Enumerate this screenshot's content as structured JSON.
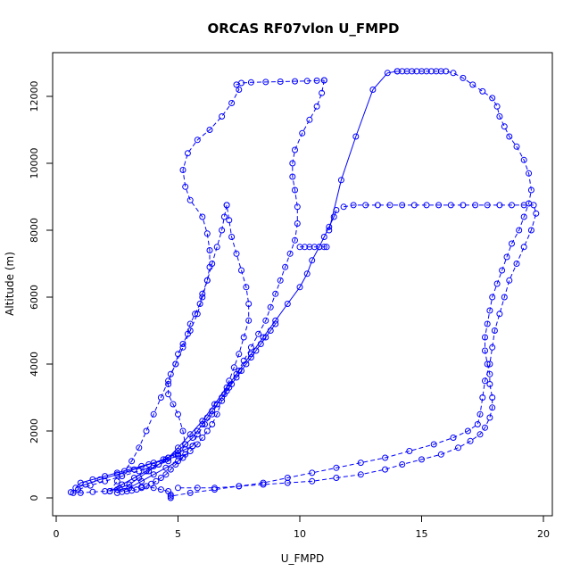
{
  "chart_data": {
    "type": "scatter",
    "title": "ORCAS RF07vlon U_FMPD",
    "xlabel": "U_FMPD",
    "ylabel": "Altitude (m)",
    "xlim": [
      0,
      20
    ],
    "ylim": [
      0,
      13000
    ],
    "xticks": [
      0,
      5,
      10,
      15,
      20
    ],
    "yticks": [
      0,
      2000,
      4000,
      6000,
      8000,
      10000,
      12000
    ],
    "grid": false,
    "color": "#0000ff",
    "series": [
      {
        "style": "dashed",
        "x": [
          4.7,
          4.7,
          4.6,
          4.3,
          4.0,
          3.5,
          3.0,
          2.5,
          2.0,
          1.5,
          1.0,
          0.7,
          0.6,
          0.9,
          1.4,
          2.0,
          2.7,
          3.4,
          4.0,
          4.6,
          5.0,
          5.3,
          5.2,
          5.0,
          4.8,
          4.6,
          4.6,
          4.7,
          4.9,
          5.0,
          5.2,
          5.4,
          5.5,
          5.7,
          5.9,
          6.0,
          6.2,
          6.3,
          6.3,
          6.2,
          6.0,
          5.5,
          5.3,
          5.2,
          5.4,
          5.8,
          6.3,
          6.8,
          7.2,
          7.5,
          7.4,
          7.6,
          8.0,
          8.6,
          9.2,
          9.8,
          10.3,
          10.7,
          11.0
        ],
        "y": [
          0,
          100,
          200,
          250,
          300,
          330,
          300,
          250,
          200,
          180,
          150,
          150,
          170,
          250,
          370,
          500,
          650,
          800,
          950,
          1100,
          1300,
          1600,
          2000,
          2500,
          2800,
          3100,
          3400,
          3700,
          4000,
          4300,
          4600,
          4900,
          5200,
          5500,
          5800,
          6100,
          6500,
          6900,
          7400,
          7900,
          8400,
          8900,
          9300,
          9800,
          10300,
          10700,
          11000,
          11400,
          11800,
          12200,
          12350,
          12400,
          12420,
          12430,
          12440,
          12450,
          12460,
          12470,
          12480
        ]
      },
      {
        "style": "dashed",
        "x": [
          11.0,
          10.9,
          10.7,
          10.4,
          10.1,
          9.8,
          9.7,
          9.7,
          9.8,
          9.9,
          9.9,
          9.8,
          9.6,
          9.4,
          9.2,
          9.0,
          8.8,
          8.6,
          8.3,
          8.0,
          7.7,
          7.4,
          7.1,
          6.8,
          6.6,
          6.4,
          6.2,
          6.0,
          5.8,
          5.5,
          5.2,
          4.9,
          4.7,
          4.5,
          4.3,
          4.1,
          3.9,
          3.7,
          3.5,
          3.3,
          3.1,
          2.9,
          2.7
        ],
        "y": [
          12480,
          12100,
          11700,
          11300,
          10900,
          10400,
          10000,
          9600,
          9200,
          8700,
          8200,
          7700,
          7300,
          6900,
          6500,
          6100,
          5700,
          5300,
          4900,
          4500,
          4100,
          3700,
          3300,
          2900,
          2500,
          2200,
          2000,
          1800,
          1600,
          1400,
          1200,
          1000,
          850,
          700,
          600,
          500,
          420,
          350,
          300,
          250,
          220,
          200,
          180
        ]
      },
      {
        "style": "solid",
        "x": [
          2.5,
          3.0,
          3.5,
          4.0,
          4.5,
          5.0,
          5.3,
          5.0,
          4.5,
          4.0,
          3.5,
          3.0,
          2.5,
          2.0,
          1.5,
          1.0,
          0.8,
          1.2,
          1.8,
          2.5,
          3.2,
          3.8,
          4.4,
          4.9,
          5.3,
          5.6
        ],
        "y": [
          150,
          300,
          500,
          700,
          900,
          1100,
          1300,
          1250,
          1150,
          1050,
          950,
          850,
          750,
          650,
          550,
          450,
          300,
          400,
          550,
          700,
          850,
          1000,
          1150,
          1300,
          1450,
          1550
        ]
      },
      {
        "style": "dashed",
        "x": [
          5.6,
          5.8,
          6.1,
          6.4,
          6.6,
          6.9,
          7.1,
          7.3,
          7.5,
          7.7,
          7.9,
          7.9,
          7.8,
          7.6,
          7.4,
          7.2,
          7.1,
          7.0
        ],
        "y": [
          1550,
          1900,
          2200,
          2500,
          2800,
          3100,
          3500,
          3900,
          4300,
          4800,
          5300,
          5800,
          6300,
          6800,
          7300,
          7800,
          8300,
          8750
        ]
      },
      {
        "style": "dashed",
        "x": [
          7.0,
          6.9,
          6.8,
          6.6,
          6.4,
          6.2,
          6.0,
          5.8,
          5.5,
          5.2,
          4.9,
          4.6,
          4.3,
          4.0,
          3.7,
          3.4,
          3.1,
          2.8,
          2.5,
          2.2
        ],
        "y": [
          8750,
          8400,
          8000,
          7500,
          7000,
          6500,
          6000,
          5500,
          5000,
          4500,
          4000,
          3500,
          3000,
          2500,
          2000,
          1500,
          1100,
          800,
          500,
          200
        ]
      },
      {
        "style": "solid",
        "x": [
          2.2,
          2.7,
          3.2,
          3.7,
          4.2,
          4.6,
          5.0,
          5.5,
          6.0,
          6.5,
          7.0,
          7.5,
          8.0,
          8.5,
          9.0,
          9.5,
          10.0,
          10.3,
          10.5,
          10.8,
          11.0,
          11.2,
          11.4,
          11.5
        ],
        "y": [
          200,
          400,
          600,
          800,
          1000,
          1200,
          1500,
          1900,
          2300,
          2800,
          3300,
          3800,
          4300,
          4800,
          5300,
          5800,
          6300,
          6700,
          7100,
          7500,
          7800,
          8100,
          8400,
          8600
        ]
      },
      {
        "style": "solid",
        "x": [
          9.0,
          8.8,
          8.6,
          8.4,
          8.2,
          8.0,
          7.8,
          7.6,
          7.4,
          7.2,
          7.0,
          6.8,
          6.6,
          6.4,
          6.2,
          6.0,
          5.8,
          5.6,
          5.3,
          5.0,
          4.6,
          4.2,
          3.8,
          3.4,
          3.0,
          2.6,
          2.2
        ],
        "y": [
          5200,
          5000,
          4800,
          4600,
          4400,
          4200,
          4000,
          3800,
          3600,
          3400,
          3200,
          3000,
          2800,
          2600,
          2400,
          2200,
          2000,
          1800,
          1600,
          1400,
          1200,
          1000,
          800,
          600,
          400,
          300,
          200
        ]
      },
      {
        "style": "dashed",
        "x": [
          10.0,
          10.2,
          10.4,
          10.6,
          10.8,
          11.0,
          11.1
        ],
        "y": [
          7500,
          7500,
          7500,
          7500,
          7500,
          7500,
          7500
        ]
      },
      {
        "style": "solid",
        "x": [
          11.2,
          11.7,
          12.3,
          13.0,
          13.6,
          14.0
        ],
        "y": [
          8000,
          9500,
          10800,
          12200,
          12700,
          12750
        ]
      },
      {
        "style": "dashed",
        "x": [
          14.0,
          14.2,
          14.4,
          14.6,
          14.8,
          15.0,
          15.2,
          15.4,
          15.6,
          15.8,
          16.0,
          16.3,
          16.7,
          17.1,
          17.5,
          17.9,
          18.1,
          18.2,
          18.4,
          18.6,
          18.9,
          19.2,
          19.4,
          19.5,
          19.4,
          19.2,
          19.0,
          18.7,
          18.5,
          18.3,
          18.1,
          17.9,
          17.8,
          17.7,
          17.6,
          17.6,
          17.7,
          17.8,
          17.8,
          17.9,
          17.9,
          17.8,
          17.6,
          17.4,
          17.0,
          16.5,
          15.8,
          15.0,
          14.2,
          13.5,
          12.5,
          11.5,
          10.5,
          9.5,
          8.5,
          7.5,
          6.5,
          5.8,
          5.0
        ],
        "y": [
          12750,
          12750,
          12750,
          12750,
          12750,
          12750,
          12750,
          12750,
          12750,
          12750,
          12750,
          12700,
          12550,
          12350,
          12150,
          11950,
          11700,
          11400,
          11100,
          10800,
          10500,
          10100,
          9700,
          9200,
          8800,
          8400,
          8000,
          7600,
          7200,
          6800,
          6400,
          6000,
          5600,
          5200,
          4800,
          4400,
          4000,
          3700,
          3400,
          3000,
          2700,
          2400,
          2100,
          1900,
          1700,
          1500,
          1300,
          1150,
          1000,
          850,
          700,
          600,
          500,
          450,
          400,
          350,
          300,
          300,
          300
        ]
      },
      {
        "style": "dashed",
        "x": [
          11.8,
          12.2,
          12.7,
          13.2,
          13.7,
          14.2,
          14.7,
          15.2,
          15.7,
          16.2,
          16.7,
          17.2,
          17.7,
          18.2,
          18.7,
          19.2,
          19.6,
          19.7,
          19.5,
          19.2,
          18.9,
          18.6,
          18.4,
          18.2,
          18.0,
          17.9,
          17.8,
          17.6,
          17.5,
          17.4,
          17.3,
          16.9,
          16.3,
          15.5,
          14.5,
          13.5,
          12.5,
          11.5,
          10.5,
          9.5,
          8.5,
          7.5,
          6.5,
          5.5,
          4.7
        ],
        "y": [
          8700,
          8750,
          8750,
          8750,
          8750,
          8750,
          8750,
          8750,
          8750,
          8750,
          8750,
          8750,
          8750,
          8750,
          8750,
          8750,
          8750,
          8500,
          8000,
          7500,
          7000,
          6500,
          6000,
          5500,
          5000,
          4500,
          4000,
          3500,
          3000,
          2500,
          2200,
          2000,
          1800,
          1600,
          1400,
          1200,
          1050,
          900,
          750,
          600,
          450,
          350,
          250,
          150,
          50
        ]
      }
    ]
  }
}
